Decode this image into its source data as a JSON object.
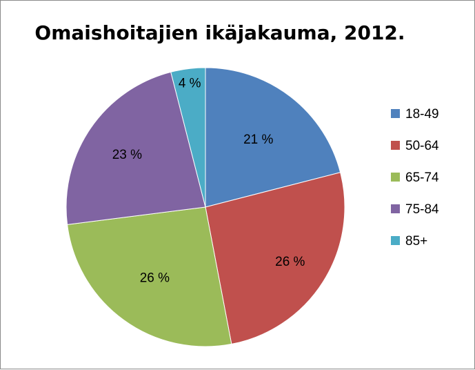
{
  "chart_data": {
    "type": "pie",
    "title": "Omaishoitajien ikäjakauma, 2012.",
    "categories": [
      "18-49",
      "50-64",
      "65-74",
      "75-84",
      "85+"
    ],
    "values": [
      21,
      26,
      26,
      23,
      4
    ],
    "labels": [
      "21 %",
      "26 %",
      "26 %",
      "23 %",
      "4 %"
    ],
    "colors": [
      "#4F81BD",
      "#C0504D",
      "#9BBB59",
      "#8064A2",
      "#4BACC6"
    ],
    "legend_position": "right"
  }
}
